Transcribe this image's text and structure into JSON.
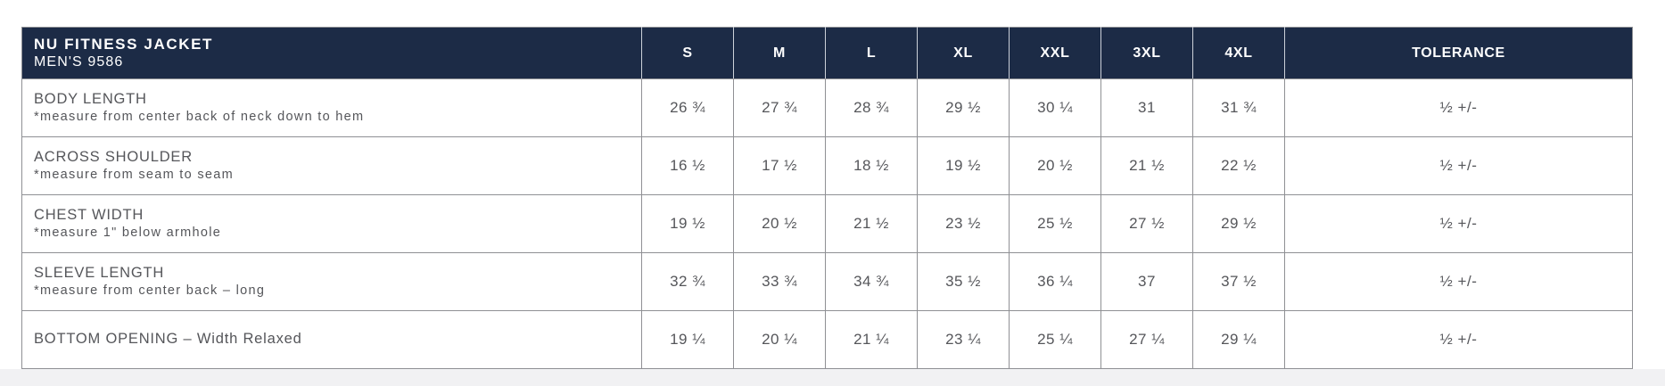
{
  "colors": {
    "header_bg": "#1c2b46",
    "header_text": "#ffffff",
    "body_text": "#55565a",
    "grid_border": "#8f9094",
    "header_separator": "#ccd1d9",
    "page_bottom_strip": "#f1f1f3"
  },
  "table": {
    "title": "NU FITNESS JACKET",
    "subtitle": "MEN'S 9586",
    "size_headers": [
      "S",
      "M",
      "L",
      "XL",
      "XXL",
      "3XL",
      "4XL"
    ],
    "tolerance_header": "TOLERANCE",
    "rows": [
      {
        "name": "BODY LENGTH",
        "note": "*measure from center back of neck down to hem",
        "values": [
          "26 ¾",
          "27 ¾",
          "28 ¾",
          "29 ½",
          "30 ¼",
          "31",
          "31 ¾"
        ],
        "tolerance": "½ +/-"
      },
      {
        "name": "ACROSS SHOULDER",
        "note": "*measure from seam to seam",
        "values": [
          "16 ½",
          "17 ½",
          "18 ½",
          "19 ½",
          "20 ½",
          "21 ½",
          "22 ½"
        ],
        "tolerance": "½ +/-"
      },
      {
        "name": "CHEST WIDTH",
        "note": "*measure 1\" below armhole",
        "values": [
          "19 ½",
          "20 ½",
          "21 ½",
          "23 ½",
          "25 ½",
          "27 ½",
          "29 ½"
        ],
        "tolerance": "½ +/-"
      },
      {
        "name": "SLEEVE LENGTH",
        "note": "*measure from center back – long",
        "values": [
          "32 ¾",
          "33 ¾",
          "34 ¾",
          "35 ½",
          "36 ¼",
          "37",
          "37 ½"
        ],
        "tolerance": "½ +/-"
      },
      {
        "name": "BOTTOM OPENING – Width Relaxed",
        "note": "",
        "values": [
          "19 ¼",
          "20 ¼",
          "21 ¼",
          "23 ¼",
          "25 ¼",
          "27 ¼",
          "29 ¼"
        ],
        "tolerance": "½ +/-"
      }
    ]
  }
}
